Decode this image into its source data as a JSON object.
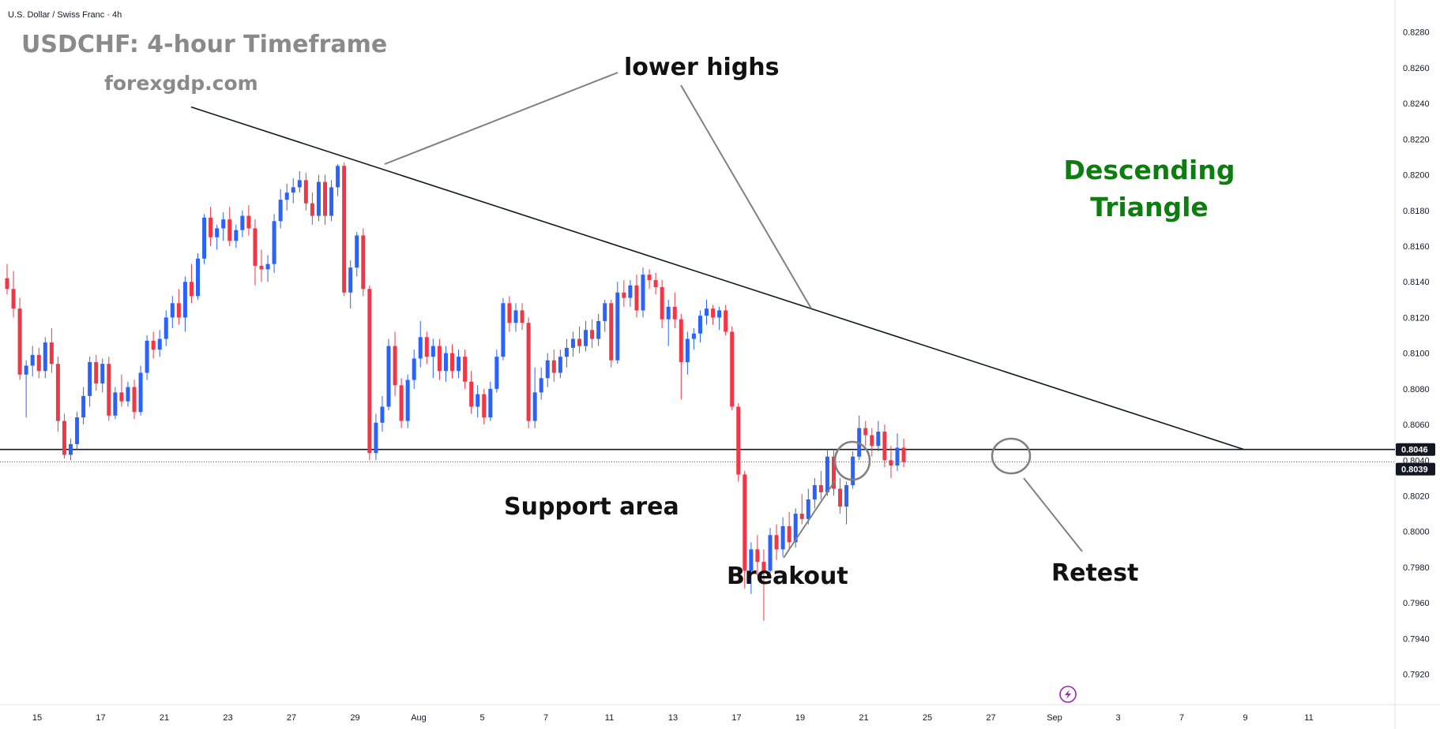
{
  "header": {
    "symbol_label": "U.S. Dollar / Swiss Franc · 4h"
  },
  "chart_data": {
    "type": "candlestick",
    "title": "USDCHF: 4-hour Timeframe",
    "subtitle": "forexgdp.com",
    "ylim": [
      0.7903,
      0.8298
    ],
    "y_ticks": [
      "0.8280",
      "0.8260",
      "0.8240",
      "0.8220",
      "0.8200",
      "0.8180",
      "0.8160",
      "0.8140",
      "0.8120",
      "0.8100",
      "0.8080",
      "0.8060",
      "0.8040",
      "0.8020",
      "0.8000",
      "0.7980",
      "0.7960",
      "0.7940",
      "0.7920"
    ],
    "x_ticks": [
      "15",
      "17",
      "21",
      "23",
      "27",
      "29",
      "Aug",
      "5",
      "7",
      "11",
      "13",
      "17",
      "19",
      "21",
      "25",
      "27",
      "Sep",
      "3",
      "7",
      "9",
      "11"
    ],
    "colors": {
      "up": "#2962ff",
      "down": "#f23645",
      "line": "#131722"
    },
    "price_labels": {
      "support": "0.8046",
      "last": "0.8039"
    },
    "support_level": 0.8046,
    "last_price": 0.8039,
    "descending_trendline": {
      "start_price": 0.8238,
      "end_price": 0.8046
    },
    "annotations": {
      "lower_highs": "lower highs",
      "descending_triangle_line1": "Descending",
      "descending_triangle_line2": "Triangle",
      "support_area": "Support area",
      "breakout": "Breakout",
      "retest": "Retest"
    },
    "icon": "lightning-icon",
    "candles": [
      [
        0.8142,
        0.815,
        0.8133,
        0.8136
      ],
      [
        0.8136,
        0.8146,
        0.812,
        0.8125
      ],
      [
        0.8125,
        0.8131,
        0.8085,
        0.8088
      ],
      [
        0.8088,
        0.8096,
        0.8064,
        0.8093
      ],
      [
        0.8093,
        0.8104,
        0.8087,
        0.8099
      ],
      [
        0.8099,
        0.8103,
        0.8086,
        0.809
      ],
      [
        0.809,
        0.8109,
        0.8086,
        0.8106
      ],
      [
        0.8106,
        0.8114,
        0.8089,
        0.8094
      ],
      [
        0.8094,
        0.8098,
        0.8056,
        0.8062
      ],
      [
        0.8062,
        0.8066,
        0.8041,
        0.8043
      ],
      [
        0.8043,
        0.8052,
        0.804,
        0.8049
      ],
      [
        0.8049,
        0.8067,
        0.8046,
        0.8064
      ],
      [
        0.8064,
        0.8081,
        0.806,
        0.8076
      ],
      [
        0.8076,
        0.8098,
        0.807,
        0.8095
      ],
      [
        0.8095,
        0.8099,
        0.8079,
        0.8083
      ],
      [
        0.8083,
        0.8097,
        0.8078,
        0.8094
      ],
      [
        0.8094,
        0.8098,
        0.8062,
        0.8065
      ],
      [
        0.8065,
        0.8081,
        0.8063,
        0.8078
      ],
      [
        0.8078,
        0.8088,
        0.807,
        0.8073
      ],
      [
        0.8073,
        0.8084,
        0.807,
        0.8081
      ],
      [
        0.8081,
        0.8085,
        0.8063,
        0.8067
      ],
      [
        0.8067,
        0.8093,
        0.8065,
        0.8089
      ],
      [
        0.8089,
        0.811,
        0.8085,
        0.8107
      ],
      [
        0.8107,
        0.8112,
        0.8097,
        0.8102
      ],
      [
        0.8102,
        0.8113,
        0.8098,
        0.8108
      ],
      [
        0.8108,
        0.8124,
        0.8104,
        0.812
      ],
      [
        0.812,
        0.8132,
        0.8114,
        0.8128
      ],
      [
        0.8128,
        0.8136,
        0.8116,
        0.812
      ],
      [
        0.812,
        0.8143,
        0.8112,
        0.814
      ],
      [
        0.814,
        0.815,
        0.8128,
        0.8132
      ],
      [
        0.8132,
        0.8156,
        0.813,
        0.8153
      ],
      [
        0.8153,
        0.8178,
        0.815,
        0.8176
      ],
      [
        0.8176,
        0.8182,
        0.816,
        0.8165
      ],
      [
        0.8165,
        0.8172,
        0.8158,
        0.817
      ],
      [
        0.817,
        0.8179,
        0.8163,
        0.8175
      ],
      [
        0.8175,
        0.8182,
        0.816,
        0.8163
      ],
      [
        0.8163,
        0.8172,
        0.8159,
        0.8169
      ],
      [
        0.8169,
        0.818,
        0.8165,
        0.8177
      ],
      [
        0.8177,
        0.8183,
        0.8166,
        0.817
      ],
      [
        0.817,
        0.8175,
        0.8138,
        0.8149
      ],
      [
        0.8149,
        0.8158,
        0.814,
        0.8147
      ],
      [
        0.8147,
        0.8155,
        0.814,
        0.815
      ],
      [
        0.815,
        0.8178,
        0.8145,
        0.8174
      ],
      [
        0.8174,
        0.8192,
        0.817,
        0.8186
      ],
      [
        0.8186,
        0.8195,
        0.818,
        0.819
      ],
      [
        0.819,
        0.8198,
        0.8184,
        0.8193
      ],
      [
        0.8193,
        0.8202,
        0.819,
        0.8197
      ],
      [
        0.8197,
        0.8201,
        0.818,
        0.8184
      ],
      [
        0.8184,
        0.819,
        0.8172,
        0.8177
      ],
      [
        0.8177,
        0.82,
        0.8174,
        0.8196
      ],
      [
        0.8196,
        0.82,
        0.8172,
        0.8177
      ],
      [
        0.8177,
        0.8197,
        0.8174,
        0.8193
      ],
      [
        0.8193,
        0.8206,
        0.8188,
        0.8205
      ],
      [
        0.8205,
        0.8207,
        0.8132,
        0.8134
      ],
      [
        0.8134,
        0.8152,
        0.8125,
        0.8148
      ],
      [
        0.8148,
        0.8168,
        0.8143,
        0.8166
      ],
      [
        0.8166,
        0.817,
        0.8132,
        0.8136
      ],
      [
        0.8136,
        0.8138,
        0.804,
        0.8044
      ],
      [
        0.8044,
        0.8066,
        0.804,
        0.8061
      ],
      [
        0.8061,
        0.8076,
        0.8056,
        0.807
      ],
      [
        0.807,
        0.8108,
        0.8068,
        0.8104
      ],
      [
        0.8104,
        0.8112,
        0.8076,
        0.8082
      ],
      [
        0.8082,
        0.8086,
        0.8058,
        0.8062
      ],
      [
        0.8062,
        0.8088,
        0.8058,
        0.8085
      ],
      [
        0.8085,
        0.8102,
        0.808,
        0.8097
      ],
      [
        0.8097,
        0.8118,
        0.8092,
        0.8109
      ],
      [
        0.8109,
        0.8112,
        0.8094,
        0.8098
      ],
      [
        0.8098,
        0.8108,
        0.8086,
        0.8104
      ],
      [
        0.8104,
        0.8108,
        0.8085,
        0.809
      ],
      [
        0.809,
        0.8104,
        0.8084,
        0.81
      ],
      [
        0.81,
        0.8105,
        0.8086,
        0.809
      ],
      [
        0.809,
        0.8102,
        0.8086,
        0.8098
      ],
      [
        0.8098,
        0.8102,
        0.808,
        0.8084
      ],
      [
        0.8084,
        0.809,
        0.8066,
        0.807
      ],
      [
        0.807,
        0.8082,
        0.8064,
        0.8077
      ],
      [
        0.8077,
        0.808,
        0.806,
        0.8064
      ],
      [
        0.8064,
        0.8084,
        0.8062,
        0.808
      ],
      [
        0.808,
        0.8102,
        0.8078,
        0.8098
      ],
      [
        0.8098,
        0.8131,
        0.8096,
        0.8128
      ],
      [
        0.8128,
        0.8132,
        0.8112,
        0.8117
      ],
      [
        0.8117,
        0.8128,
        0.8112,
        0.8124
      ],
      [
        0.8124,
        0.8128,
        0.8113,
        0.8117
      ],
      [
        0.8117,
        0.812,
        0.8058,
        0.8062
      ],
      [
        0.8062,
        0.8092,
        0.8058,
        0.8078
      ],
      [
        0.8078,
        0.8092,
        0.8074,
        0.8086
      ],
      [
        0.8086,
        0.81,
        0.8081,
        0.8096
      ],
      [
        0.8096,
        0.8102,
        0.8084,
        0.8089
      ],
      [
        0.8089,
        0.8102,
        0.8086,
        0.8098
      ],
      [
        0.8098,
        0.8108,
        0.8092,
        0.8103
      ],
      [
        0.8103,
        0.8112,
        0.8098,
        0.8108
      ],
      [
        0.8108,
        0.8115,
        0.81,
        0.8104
      ],
      [
        0.8104,
        0.8118,
        0.8101,
        0.8113
      ],
      [
        0.8113,
        0.8119,
        0.8103,
        0.8108
      ],
      [
        0.8108,
        0.8122,
        0.8104,
        0.8118
      ],
      [
        0.8118,
        0.813,
        0.8112,
        0.8128
      ],
      [
        0.8128,
        0.813,
        0.8092,
        0.8096
      ],
      [
        0.8096,
        0.814,
        0.8094,
        0.8134
      ],
      [
        0.8134,
        0.8141,
        0.8126,
        0.8131
      ],
      [
        0.8131,
        0.8141,
        0.8126,
        0.8138
      ],
      [
        0.8138,
        0.8144,
        0.812,
        0.8124
      ],
      [
        0.8124,
        0.8148,
        0.812,
        0.8144
      ],
      [
        0.8144,
        0.8147,
        0.8136,
        0.8141
      ],
      [
        0.8141,
        0.8145,
        0.8133,
        0.8137
      ],
      [
        0.8137,
        0.8141,
        0.8114,
        0.8119
      ],
      [
        0.8119,
        0.813,
        0.8104,
        0.8126
      ],
      [
        0.8126,
        0.8134,
        0.8114,
        0.8119
      ],
      [
        0.8119,
        0.8122,
        0.8074,
        0.8095
      ],
      [
        0.8095,
        0.8112,
        0.8088,
        0.8108
      ],
      [
        0.8108,
        0.8114,
        0.8102,
        0.8111
      ],
      [
        0.8111,
        0.8124,
        0.8106,
        0.8121
      ],
      [
        0.8121,
        0.813,
        0.8116,
        0.8125
      ],
      [
        0.8125,
        0.8127,
        0.8116,
        0.812
      ],
      [
        0.812,
        0.8126,
        0.8113,
        0.8124
      ],
      [
        0.8124,
        0.8127,
        0.811,
        0.8112
      ],
      [
        0.8112,
        0.8115,
        0.8068,
        0.807
      ],
      [
        0.807,
        0.8072,
        0.8028,
        0.8032
      ],
      [
        0.8032,
        0.8034,
        0.7968,
        0.7978
      ],
      [
        0.7978,
        0.7994,
        0.7965,
        0.799
      ],
      [
        0.799,
        0.7998,
        0.7975,
        0.7983
      ],
      [
        0.7983,
        0.799,
        0.795,
        0.7978
      ],
      [
        0.7978,
        0.8002,
        0.7975,
        0.7998
      ],
      [
        0.7998,
        0.8004,
        0.7984,
        0.799
      ],
      [
        0.799,
        0.8008,
        0.7986,
        0.8003
      ],
      [
        0.8003,
        0.8011,
        0.799,
        0.7994
      ],
      [
        0.7994,
        0.8013,
        0.7991,
        0.801
      ],
      [
        0.801,
        0.8021,
        0.8004,
        0.8007
      ],
      [
        0.8007,
        0.8024,
        0.8004,
        0.8018
      ],
      [
        0.8018,
        0.803,
        0.8013,
        0.8026
      ],
      [
        0.8026,
        0.8034,
        0.8018,
        0.8022
      ],
      [
        0.8022,
        0.8046,
        0.802,
        0.8042
      ],
      [
        0.8042,
        0.8046,
        0.802,
        0.8024
      ],
      [
        0.8024,
        0.803,
        0.801,
        0.8014
      ],
      [
        0.8014,
        0.8028,
        0.8004,
        0.8026
      ],
      [
        0.8026,
        0.8045,
        0.8024,
        0.8042
      ],
      [
        0.8042,
        0.8065,
        0.804,
        0.8058
      ],
      [
        0.8058,
        0.8062,
        0.8048,
        0.8054
      ],
      [
        0.8054,
        0.8058,
        0.8042,
        0.8048
      ],
      [
        0.8048,
        0.8062,
        0.8045,
        0.8056
      ],
      [
        0.8056,
        0.806,
        0.8036,
        0.804
      ],
      [
        0.804,
        0.8048,
        0.803,
        0.8037
      ],
      [
        0.8037,
        0.8055,
        0.8034,
        0.8047
      ],
      [
        0.8047,
        0.8052,
        0.8036,
        0.8039
      ]
    ]
  }
}
